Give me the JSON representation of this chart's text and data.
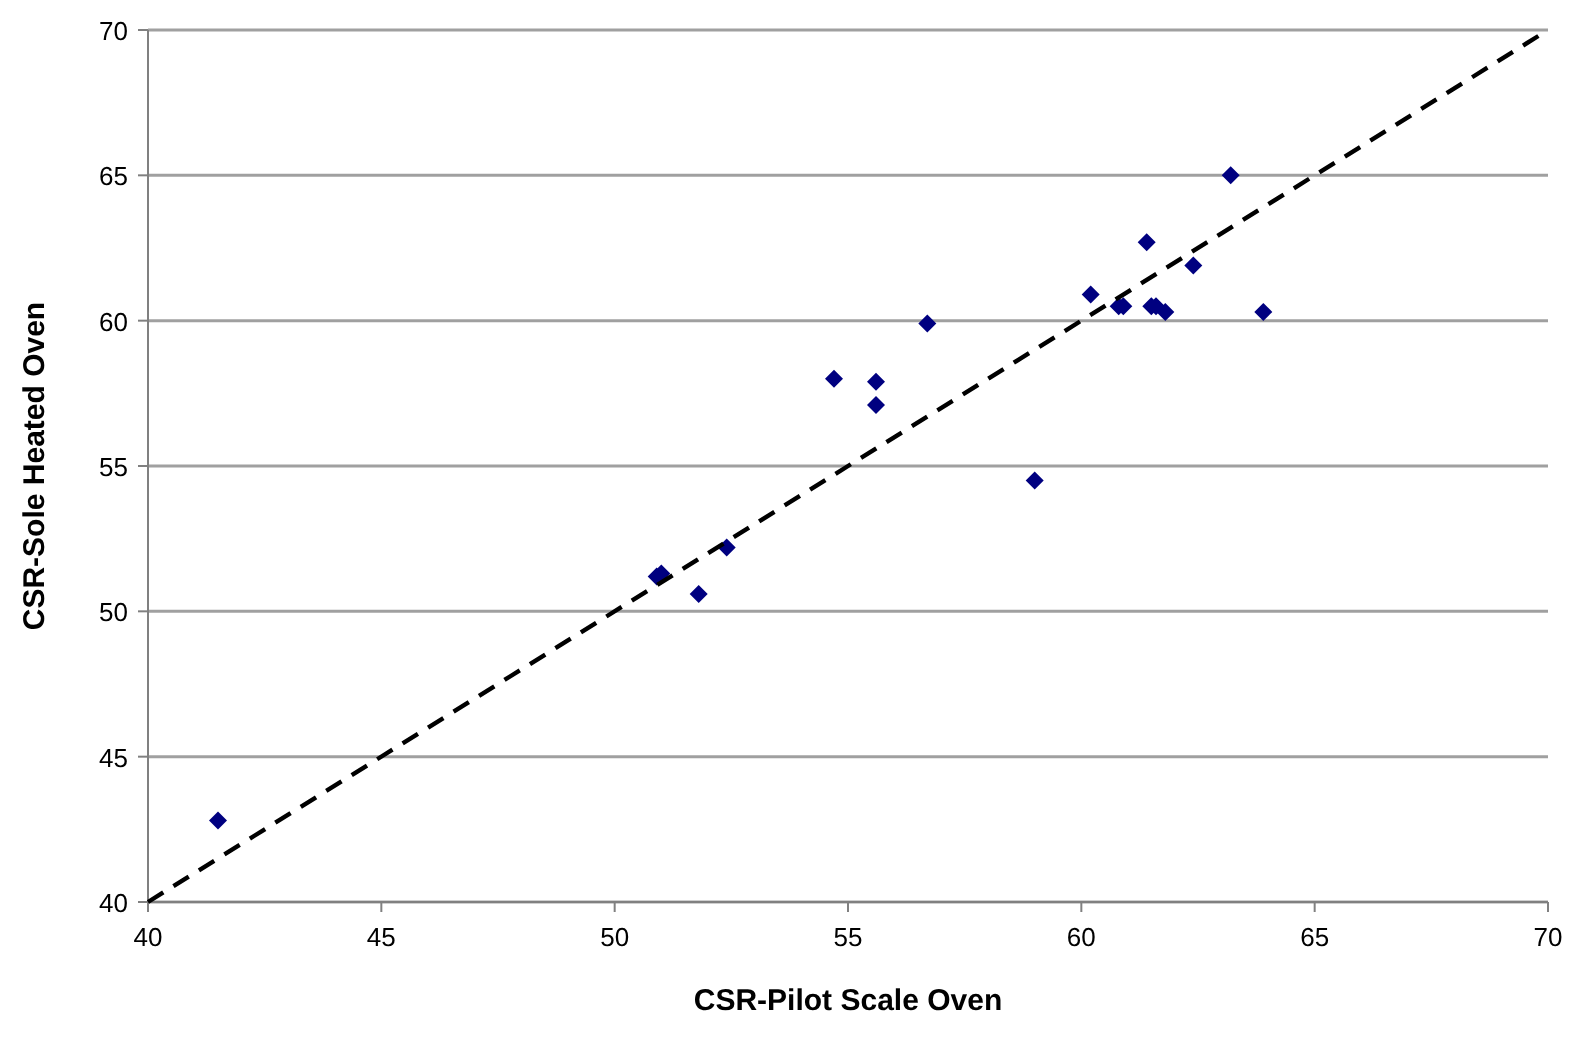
{
  "chart_data": {
    "type": "scatter",
    "xlabel": "CSR-Pilot Scale Oven",
    "ylabel": "CSR-Sole Heated Oven",
    "xlim": [
      40,
      70
    ],
    "ylim": [
      40,
      70
    ],
    "xticks": [
      40,
      45,
      50,
      55,
      60,
      65,
      70
    ],
    "yticks": [
      40,
      45,
      50,
      55,
      60,
      65,
      70
    ],
    "grid": "y",
    "series": [
      {
        "color": "#000080",
        "marker": "diamond",
        "x": [
          41.5,
          50.9,
          51.0,
          51.8,
          52.4,
          54.7,
          55.6,
          55.6,
          56.7,
          59.0,
          60.2,
          60.8,
          60.9,
          61.4,
          61.5,
          61.6,
          61.8,
          62.4,
          63.2,
          63.9
        ],
        "values": [
          42.8,
          51.2,
          51.3,
          50.6,
          52.2,
          58.0,
          57.9,
          57.1,
          59.9,
          54.5,
          60.9,
          60.5,
          60.5,
          62.7,
          60.5,
          60.5,
          60.3,
          61.9,
          65.0,
          60.3
        ]
      },
      {
        "type": "line",
        "color": "#000000",
        "line_style": "dashed",
        "marker": "none",
        "x": [
          40,
          70
        ],
        "values": [
          40,
          70
        ]
      }
    ]
  }
}
